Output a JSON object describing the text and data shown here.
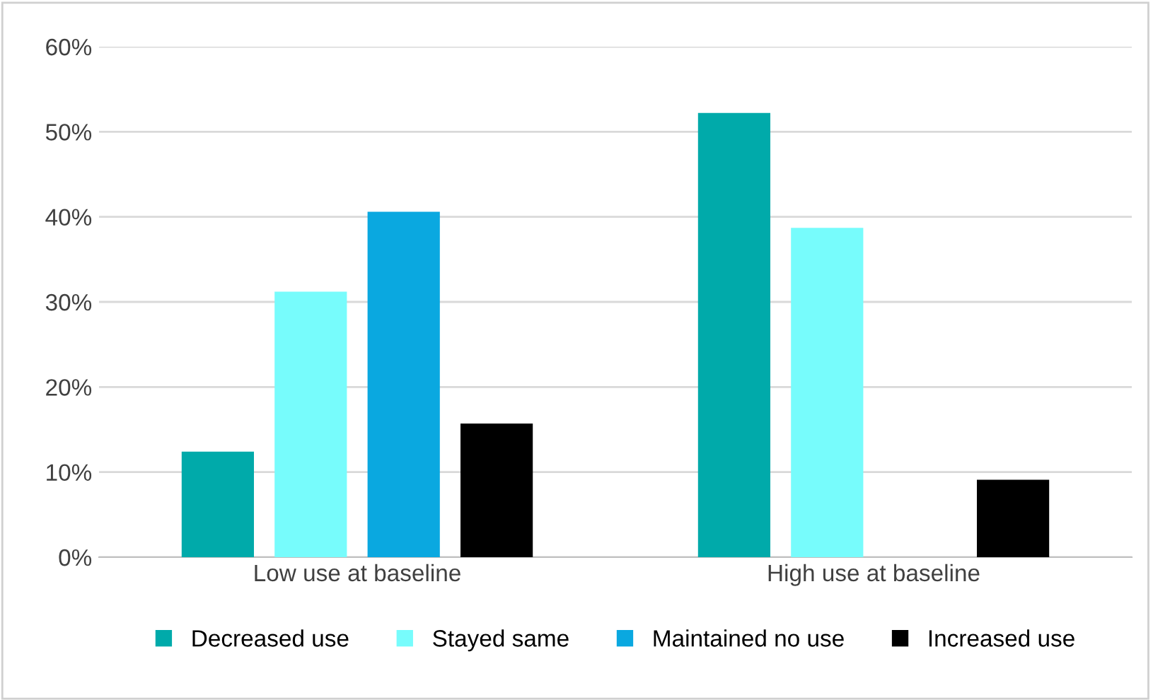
{
  "chart_data": {
    "type": "bar",
    "categories": [
      "Low use at baseline",
      "High use at baseline"
    ],
    "series": [
      {
        "name": "Decreased use",
        "color": "#00aaaa",
        "values": [
          12.4,
          52.2
        ]
      },
      {
        "name": "Stayed same",
        "color": "#77fcfc",
        "values": [
          31.2,
          38.7
        ]
      },
      {
        "name": "Maintained no use",
        "color": "#0aa8e0",
        "values": [
          40.6,
          0
        ]
      },
      {
        "name": "Increased use",
        "color": "#000000",
        "values": [
          15.7,
          9.1
        ]
      }
    ],
    "ylim": [
      0,
      60
    ],
    "yticks": [
      {
        "value": 0,
        "label": "0%"
      },
      {
        "value": 10,
        "label": "10%"
      },
      {
        "value": 20,
        "label": "20%"
      },
      {
        "value": 30,
        "label": "30%"
      },
      {
        "value": 40,
        "label": "40%"
      },
      {
        "value": 50,
        "label": "50%"
      },
      {
        "value": 60,
        "label": "60%"
      }
    ],
    "grid": "y",
    "legend": "bottom"
  }
}
